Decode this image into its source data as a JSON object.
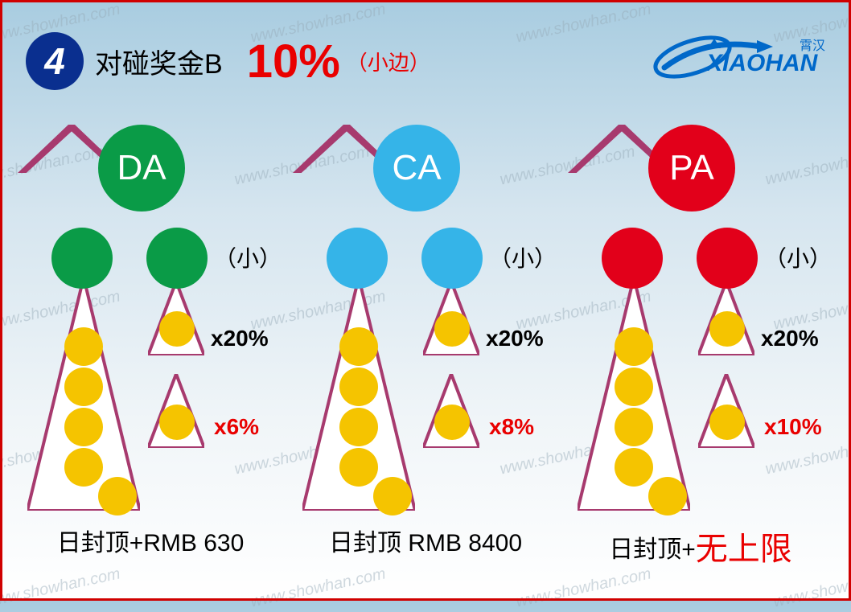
{
  "watermark_text": "www.showhan.com",
  "header": {
    "badge_number": "4",
    "title": "对碰奖金B",
    "percent": "10%",
    "percent_note": "（小边）",
    "badge_bg": "#0a2f8f",
    "percent_color": "#e90000"
  },
  "logo": {
    "brand_en": "XIAOHAN",
    "brand_cn": "霄汉",
    "color": "#0068c9"
  },
  "columns": [
    {
      "code": "DA",
      "node_color": "#0a9b47",
      "small_label": "（小）",
      "pct1": "x20%",
      "pct2": "x6%",
      "caption_prefix": "日封顶+",
      "caption_value": "RMB 630",
      "caption_emph": false
    },
    {
      "code": "CA",
      "node_color": "#35b4e8",
      "small_label": "（小）",
      "pct1": "x20%",
      "pct2": "x8%",
      "caption_prefix": "日封顶 ",
      "caption_value": "RMB 8400",
      "caption_emph": false
    },
    {
      "code": "PA",
      "node_color": "#e2001a",
      "small_label": "（小）",
      "pct1": "x20%",
      "pct2": "x10%",
      "caption_prefix": "日封顶+",
      "caption_value": "无上限",
      "caption_emph": true
    }
  ],
  "styling": {
    "triangle_stroke": "#a73a6e",
    "triangle_stroke_width": 3,
    "yellow": "#f5c400",
    "border_color": "#d00000",
    "bg_gradient": [
      "#a8cce0",
      "#d5e5ef",
      "#f0f5f8",
      "#ffffff"
    ]
  }
}
